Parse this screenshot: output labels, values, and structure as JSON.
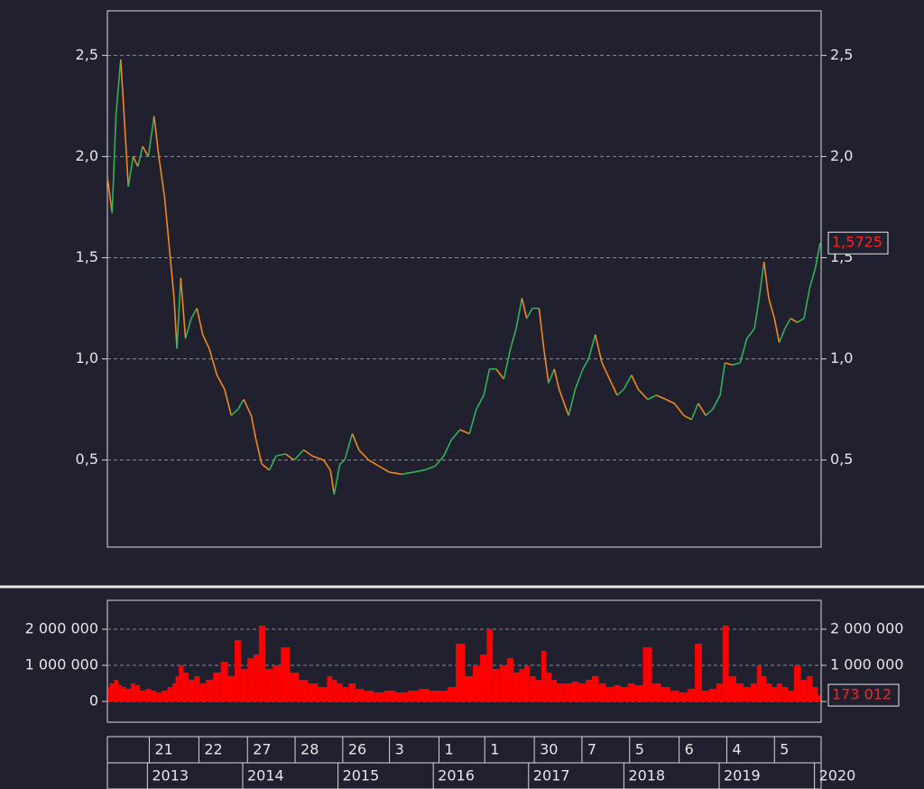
{
  "chart_data": {
    "type": "stock",
    "xlim": [
      2012.58,
      2020.07
    ],
    "xticks": [
      2013,
      2014,
      2015,
      2016,
      2017,
      2018,
      2019,
      2020
    ],
    "day_ticks": [
      {
        "value": 2013.02,
        "label": "21"
      },
      {
        "value": 2013.54,
        "label": "22"
      },
      {
        "value": 2014.05,
        "label": "27"
      },
      {
        "value": 2014.55,
        "label": "28"
      },
      {
        "value": 2015.05,
        "label": "26"
      },
      {
        "value": 2015.54,
        "label": "3"
      },
      {
        "value": 2016.06,
        "label": "1"
      },
      {
        "value": 2016.54,
        "label": "1"
      },
      {
        "value": 2017.06,
        "label": "30"
      },
      {
        "value": 2017.56,
        "label": "7"
      },
      {
        "value": 2018.06,
        "label": "5"
      },
      {
        "value": 2018.58,
        "label": "6"
      },
      {
        "value": 2019.08,
        "label": "4"
      },
      {
        "value": 2019.58,
        "label": "5"
      }
    ],
    "x": [
      2012.58,
      2012.63,
      2012.67,
      2012.72,
      2012.75,
      2012.8,
      2012.85,
      2012.9,
      2012.95,
      2013.01,
      2013.07,
      2013.12,
      2013.18,
      2013.24,
      2013.28,
      2013.31,
      2013.35,
      2013.4,
      2013.46,
      2013.52,
      2013.58,
      2013.65,
      2013.73,
      2013.81,
      2013.88,
      2013.95,
      2014.01,
      2014.09,
      2014.14,
      2014.2,
      2014.28,
      2014.35,
      2014.45,
      2014.54,
      2014.64,
      2014.73,
      2014.85,
      2014.92,
      2014.96,
      2015.02,
      2015.07,
      2015.15,
      2015.22,
      2015.32,
      2015.43,
      2015.54,
      2015.67,
      2015.79,
      2015.9,
      2016.02,
      2016.11,
      2016.19,
      2016.28,
      2016.38,
      2016.45,
      2016.53,
      2016.59,
      2016.66,
      2016.74,
      2016.81,
      2016.87,
      2016.93,
      2016.98,
      2017.04,
      2017.11,
      2017.16,
      2017.21,
      2017.27,
      2017.32,
      2017.42,
      2017.49,
      2017.57,
      2017.63,
      2017.7,
      2017.77,
      2017.85,
      2017.93,
      2018.0,
      2018.08,
      2018.15,
      2018.25,
      2018.34,
      2018.44,
      2018.53,
      2018.63,
      2018.71,
      2018.78,
      2018.86,
      2018.93,
      2019.01,
      2019.06,
      2019.14,
      2019.22,
      2019.29,
      2019.37,
      2019.42,
      2019.47,
      2019.52,
      2019.58,
      2019.63,
      2019.69,
      2019.75,
      2019.82,
      2019.89,
      2019.95,
      2020.01,
      2020.06
    ],
    "price": {
      "ylim": [
        0.07,
        2.72
      ],
      "yticks": [
        {
          "value": 0.5,
          "label": "0,5"
        },
        {
          "value": 1.0,
          "label": "1,0"
        },
        {
          "value": 1.5,
          "label": "1,5"
        },
        {
          "value": 2.0,
          "label": "2,0"
        },
        {
          "value": 2.5,
          "label": "2,5"
        }
      ],
      "grid": true,
      "up_color": "#2fb15a",
      "down_color": "#f0891c",
      "values": [
        1.9,
        1.72,
        2.2,
        2.48,
        2.25,
        1.85,
        2.0,
        1.95,
        2.05,
        2.0,
        2.2,
        2.0,
        1.8,
        1.5,
        1.3,
        1.05,
        1.4,
        1.1,
        1.2,
        1.25,
        1.12,
        1.05,
        0.92,
        0.85,
        0.72,
        0.75,
        0.8,
        0.72,
        0.6,
        0.48,
        0.45,
        0.52,
        0.53,
        0.5,
        0.55,
        0.52,
        0.5,
        0.45,
        0.33,
        0.48,
        0.5,
        0.63,
        0.55,
        0.5,
        0.47,
        0.44,
        0.43,
        0.44,
        0.45,
        0.47,
        0.52,
        0.6,
        0.65,
        0.63,
        0.75,
        0.82,
        0.95,
        0.95,
        0.9,
        1.05,
        1.15,
        1.3,
        1.2,
        1.25,
        1.25,
        1.05,
        0.88,
        0.95,
        0.85,
        0.72,
        0.85,
        0.95,
        1.0,
        1.12,
        0.98,
        0.9,
        0.82,
        0.85,
        0.92,
        0.85,
        0.8,
        0.82,
        0.8,
        0.78,
        0.72,
        0.7,
        0.78,
        0.72,
        0.75,
        0.82,
        0.98,
        0.97,
        0.98,
        1.1,
        1.15,
        1.3,
        1.48,
        1.3,
        1.2,
        1.08,
        1.15,
        1.2,
        1.18,
        1.2,
        1.35,
        1.45,
        1.5725
      ],
      "last": {
        "value": 1.5725,
        "label": "1,5725"
      },
      "last_color": "#ff2020"
    },
    "volume": {
      "ylim": [
        -575000,
        2800000
      ],
      "yticks": [
        0,
        {
          "value": 1000000,
          "label": "1 000 000"
        },
        {
          "value": 2000000,
          "label": "2 000 000"
        }
      ],
      "grid": true,
      "color": "#ff0000",
      "values": [
        400000,
        500000,
        600000,
        450000,
        400000,
        350000,
        500000,
        450000,
        300000,
        350000,
        300000,
        250000,
        300000,
        400000,
        500000,
        700000,
        1000000,
        800000,
        600000,
        700000,
        500000,
        600000,
        800000,
        1100000,
        700000,
        1700000,
        900000,
        1200000,
        1300000,
        2100000,
        900000,
        1000000,
        1500000,
        800000,
        600000,
        500000,
        400000,
        700000,
        600000,
        500000,
        400000,
        500000,
        350000,
        300000,
        250000,
        300000,
        250000,
        300000,
        350000,
        300000,
        300000,
        400000,
        1600000,
        700000,
        1000000,
        1300000,
        2000000,
        900000,
        1000000,
        1200000,
        800000,
        900000,
        1000000,
        700000,
        600000,
        1400000,
        800000,
        600000,
        500000,
        500000,
        550000,
        500000,
        600000,
        700000,
        500000,
        400000,
        450000,
        400000,
        500000,
        450000,
        1500000,
        500000,
        400000,
        300000,
        250000,
        350000,
        1600000,
        300000,
        350000,
        500000,
        2100000,
        700000,
        500000,
        400000,
        500000,
        1000000,
        700000,
        500000,
        400000,
        500000,
        400000,
        300000,
        1000000,
        600000,
        700000,
        400000,
        173012
      ],
      "last": {
        "value": 173012,
        "label": "173 012"
      },
      "last_color": "#ff2020"
    }
  }
}
